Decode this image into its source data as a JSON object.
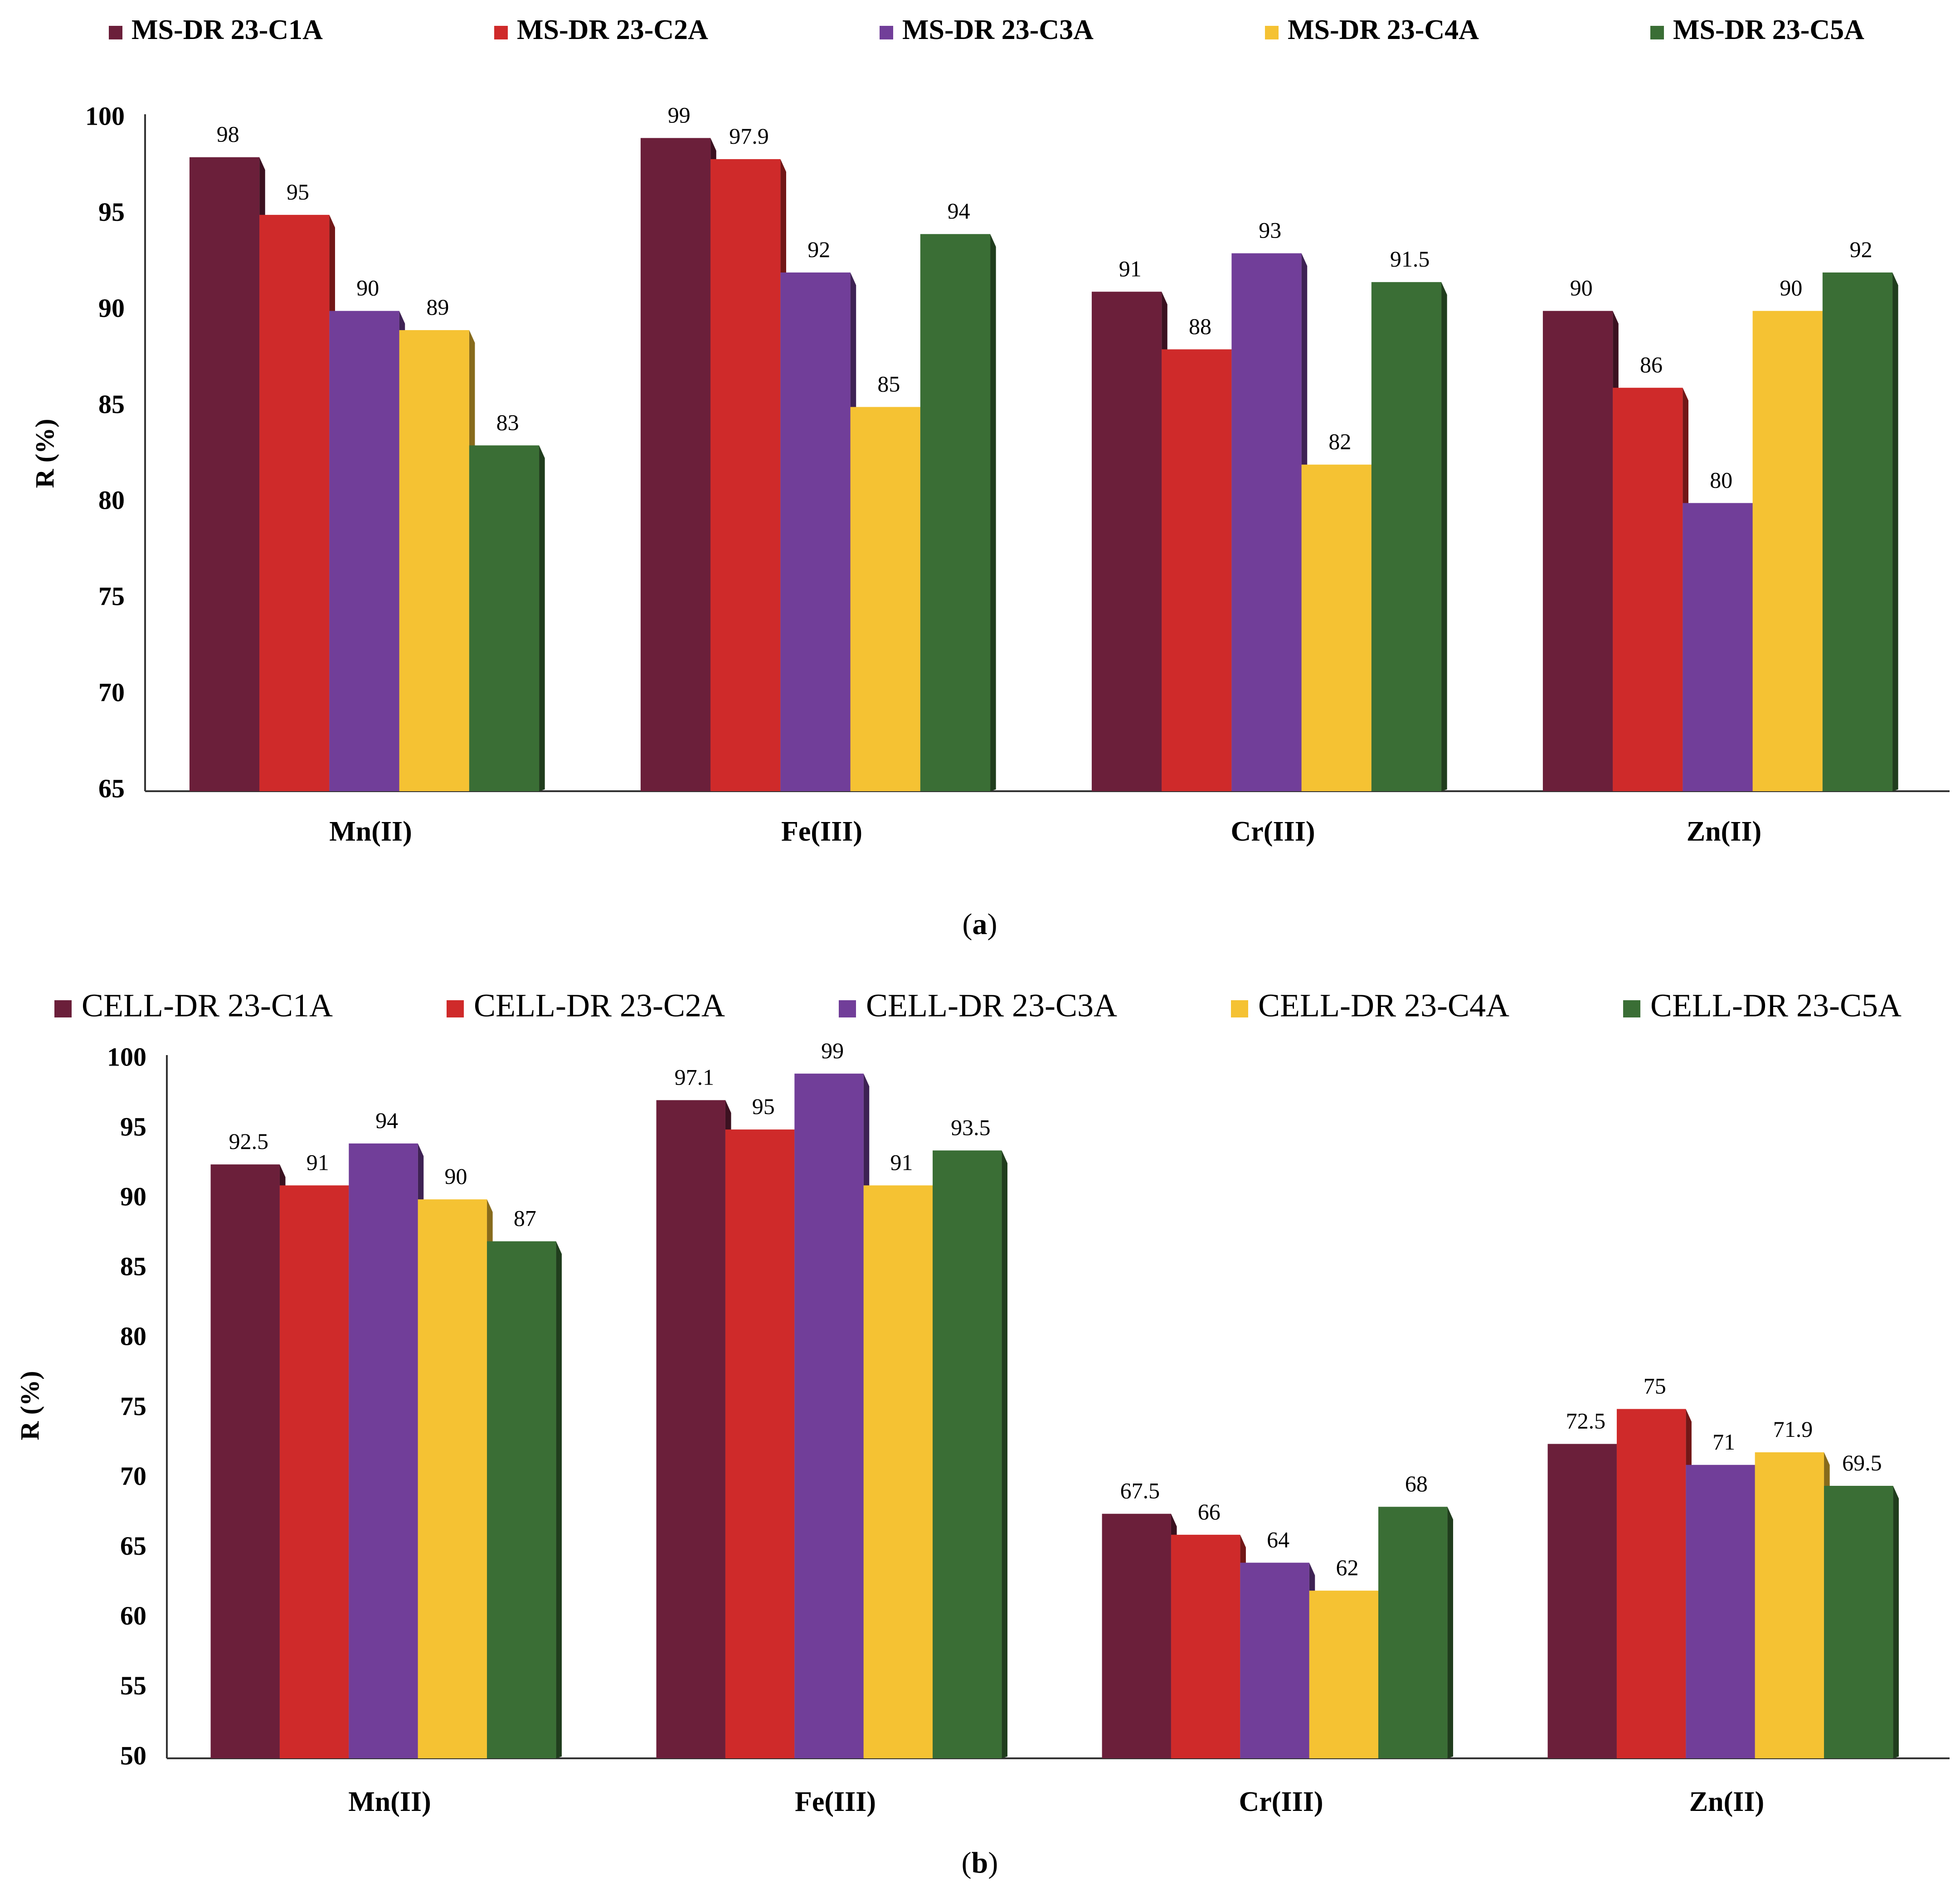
{
  "charts": [
    {
      "caption_letter": "a",
      "chart_data": {
        "type": "bar",
        "xlabel": "",
        "ylabel": "R (%)",
        "ylim": [
          65,
          100
        ],
        "yticks": [
          65,
          70,
          75,
          80,
          85,
          90,
          95,
          100
        ],
        "grid": false,
        "legend_position": "top",
        "categories": [
          "Mn(II)",
          "Fe(III)",
          "Cr(III)",
          "Zn(II)"
        ],
        "series": [
          {
            "name": "MS-DR 23-C1A",
            "color": "#6b1f3a",
            "values": [
              98,
              99,
              91,
              90
            ],
            "labels": [
              "98",
              "99",
              "91",
              "90"
            ]
          },
          {
            "name": "MS-DR 23-C2A",
            "color": "#cf2a2a",
            "values": [
              95,
              97.9,
              88,
              86
            ],
            "labels": [
              "95",
              "97.9",
              "88",
              "86"
            ]
          },
          {
            "name": "MS-DR 23-C3A",
            "color": "#713e99",
            "values": [
              90,
              92,
              93,
              80
            ],
            "labels": [
              "90",
              "92",
              "93",
              "80"
            ]
          },
          {
            "name": "MS-DR 23-C4A",
            "color": "#f5c233",
            "values": [
              89,
              85,
              82,
              90
            ],
            "labels": [
              "89",
              "85",
              "82",
              "90"
            ]
          },
          {
            "name": "MS-DR 23-C5A",
            "color": "#3a6e35",
            "values": [
              83,
              94,
              91.5,
              92
            ],
            "labels": [
              "83",
              "94",
              "91.5",
              "92"
            ]
          }
        ]
      }
    },
    {
      "caption_letter": "b",
      "chart_data": {
        "type": "bar",
        "xlabel": "",
        "ylabel": "R (%)",
        "ylim": [
          50,
          100
        ],
        "yticks": [
          50,
          55,
          60,
          65,
          70,
          75,
          80,
          85,
          90,
          95,
          100
        ],
        "grid": false,
        "legend_position": "top",
        "categories": [
          "Mn(II)",
          "Fe(III)",
          "Cr(III)",
          "Zn(II)"
        ],
        "series": [
          {
            "name": "CELL-DR 23-C1A",
            "color": "#6b1f3a",
            "values": [
              92.5,
              97.1,
              67.5,
              72.5
            ],
            "labels": [
              "92.5",
              "97.1",
              "67.5",
              "72.5"
            ]
          },
          {
            "name": "CELL-DR 23-C2A",
            "color": "#cf2a2a",
            "values": [
              91,
              95,
              66,
              75
            ],
            "labels": [
              "91",
              "95",
              "66",
              "75"
            ]
          },
          {
            "name": "CELL-DR 23-C3A",
            "color": "#713e99",
            "values": [
              94,
              99,
              64,
              71
            ],
            "labels": [
              "94",
              "99",
              "64",
              "71"
            ]
          },
          {
            "name": "CELL-DR 23-C4A",
            "color": "#f5c233",
            "values": [
              90,
              91,
              62,
              71.9
            ],
            "labels": [
              "90",
              "91",
              "62",
              "71.9"
            ]
          },
          {
            "name": "CELL-DR 23-C5A",
            "color": "#3a6e35",
            "values": [
              87,
              93.5,
              68,
              69.5
            ],
            "labels": [
              "87",
              "93.5",
              "68",
              "69.5"
            ]
          }
        ]
      }
    }
  ]
}
